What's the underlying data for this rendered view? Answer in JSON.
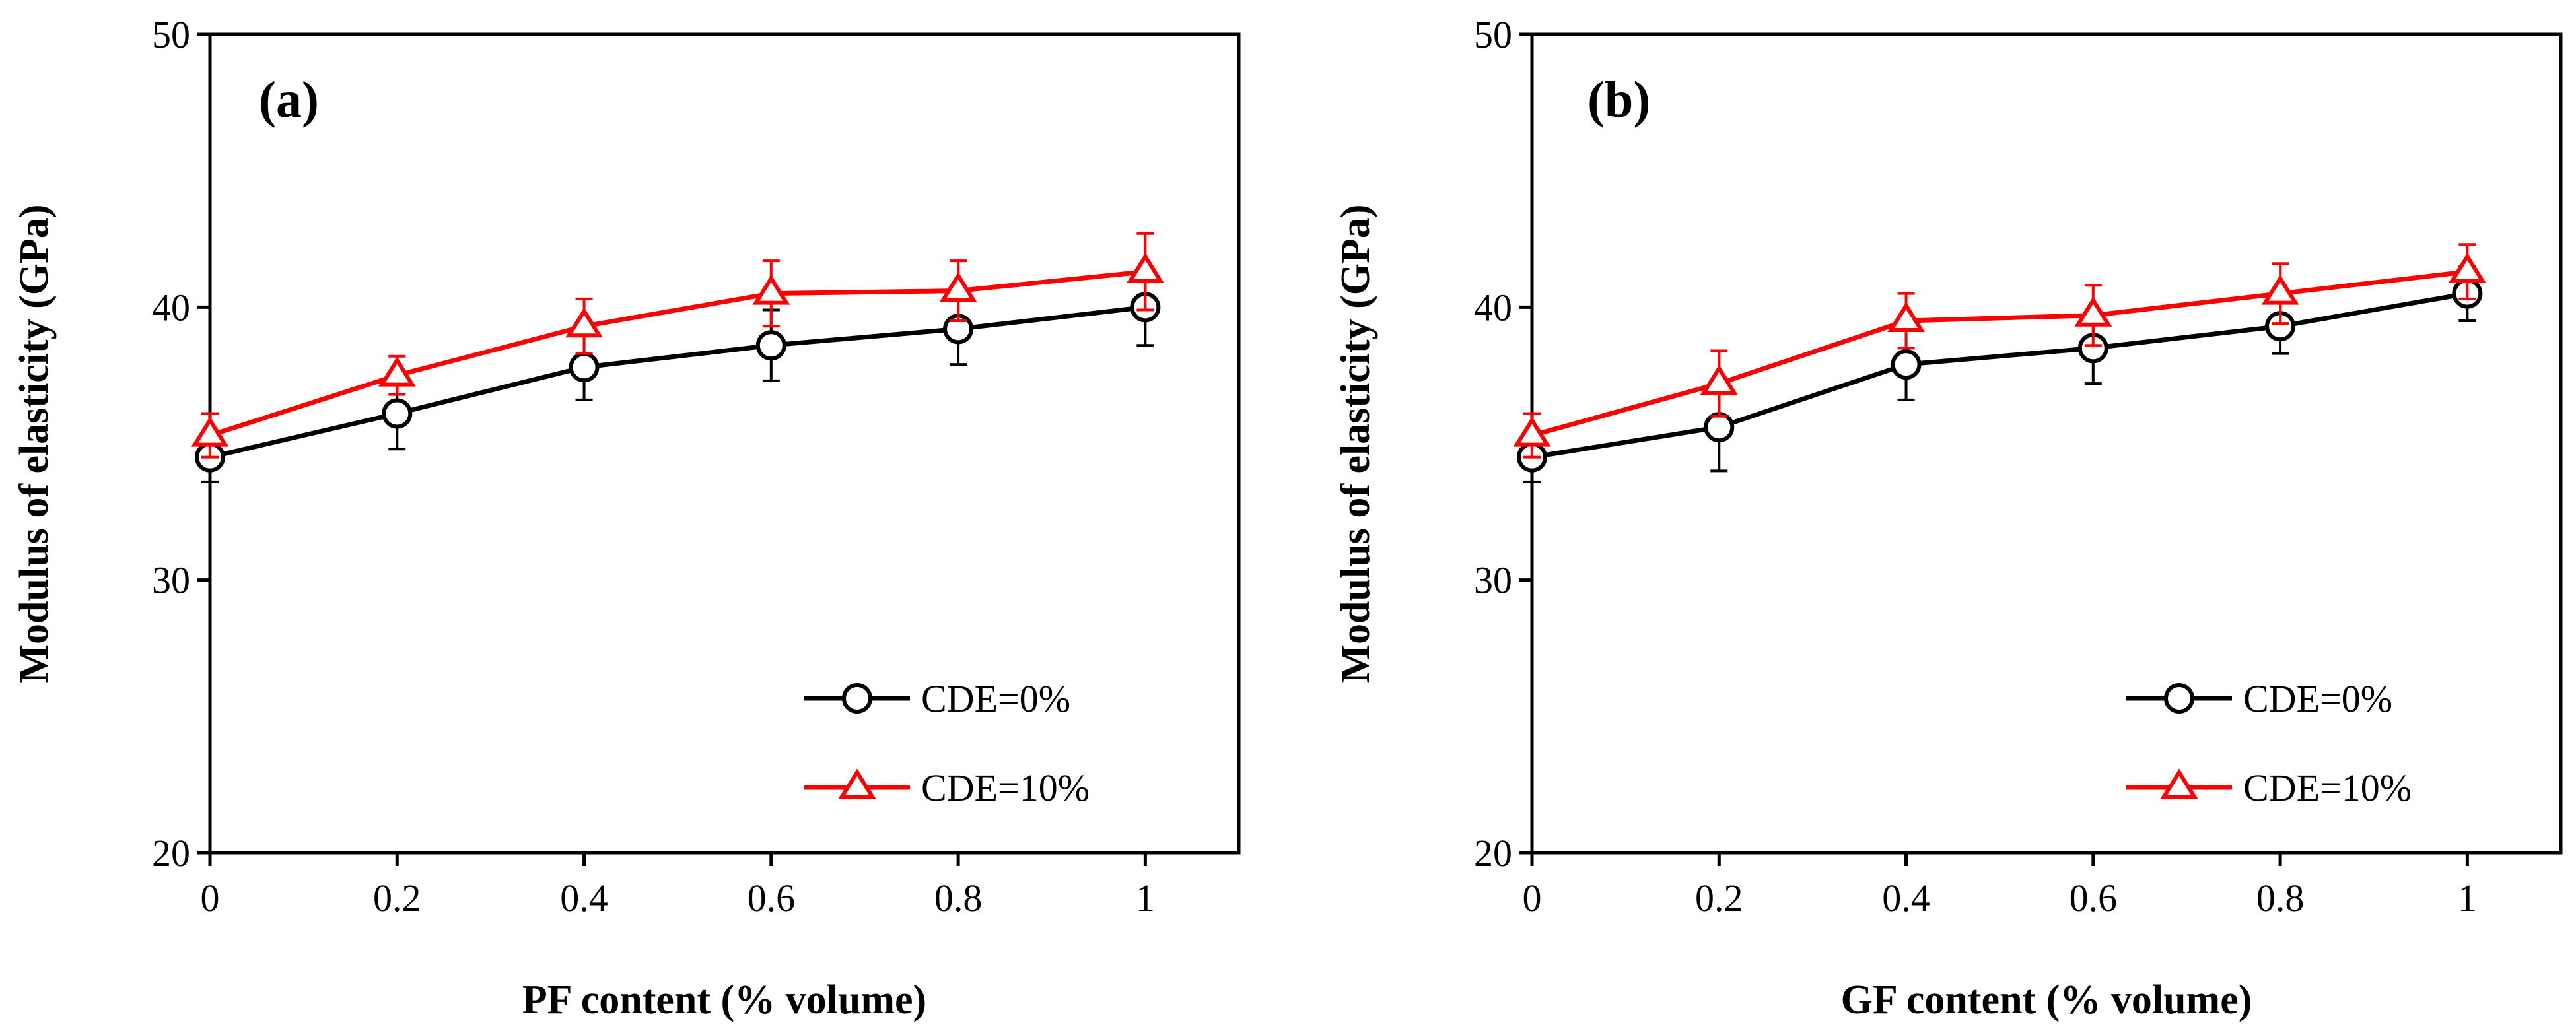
{
  "chart_data": [
    {
      "type": "line",
      "panel_label": "(a)",
      "xlabel": "PF content (% volume)",
      "ylabel": "Modulus of elasticity (GPa)",
      "xlim": [
        0,
        1.1
      ],
      "ylim": [
        20,
        50
      ],
      "xticks": [
        0,
        0.2,
        0.4,
        0.6,
        0.8,
        1
      ],
      "xtick_labels": [
        "0",
        "0.2",
        "0.4",
        "0.6",
        "0.8",
        "1"
      ],
      "yticks": [
        20,
        30,
        40,
        50
      ],
      "ytick_labels": [
        "20",
        "30",
        "40",
        "50"
      ],
      "x": [
        0,
        0.2,
        0.4,
        0.6,
        0.8,
        1
      ],
      "legend_position": "bottom-right",
      "series": [
        {
          "name": "CDE=0%",
          "marker": "circle",
          "color": "#000000",
          "values": [
            34.5,
            36.1,
            37.8,
            38.6,
            39.2,
            40.0
          ],
          "errors": [
            0.9,
            1.3,
            1.2,
            1.3,
            1.3,
            1.4
          ]
        },
        {
          "name": "CDE=10%",
          "marker": "triangle",
          "color": "#ff0000",
          "values": [
            35.3,
            37.5,
            39.3,
            40.5,
            40.6,
            41.3
          ],
          "errors": [
            0.8,
            0.7,
            1.0,
            1.2,
            1.1,
            1.4
          ]
        }
      ]
    },
    {
      "type": "line",
      "panel_label": "(b)",
      "xlabel": "GF content (% volume)",
      "ylabel": "Modulus of elasticity (GPa)",
      "xlim": [
        0,
        1.1
      ],
      "ylim": [
        20,
        50
      ],
      "xticks": [
        0,
        0.2,
        0.4,
        0.6,
        0.8,
        1
      ],
      "xtick_labels": [
        "0",
        "0.2",
        "0.4",
        "0.6",
        "0.8",
        "1"
      ],
      "yticks": [
        20,
        30,
        40,
        50
      ],
      "ytick_labels": [
        "20",
        "30",
        "40",
        "50"
      ],
      "x": [
        0,
        0.2,
        0.4,
        0.6,
        0.8,
        1
      ],
      "legend_position": "bottom-right",
      "series": [
        {
          "name": "CDE=0%",
          "marker": "circle",
          "color": "#000000",
          "values": [
            34.5,
            35.6,
            37.9,
            38.5,
            39.3,
            40.5
          ],
          "errors": [
            0.9,
            1.6,
            1.3,
            1.3,
            1.0,
            1.0
          ]
        },
        {
          "name": "CDE=10%",
          "marker": "triangle",
          "color": "#ff0000",
          "values": [
            35.3,
            37.2,
            39.5,
            39.7,
            40.5,
            41.3
          ],
          "errors": [
            0.8,
            1.2,
            1.0,
            1.1,
            1.1,
            1.0
          ]
        }
      ]
    }
  ]
}
